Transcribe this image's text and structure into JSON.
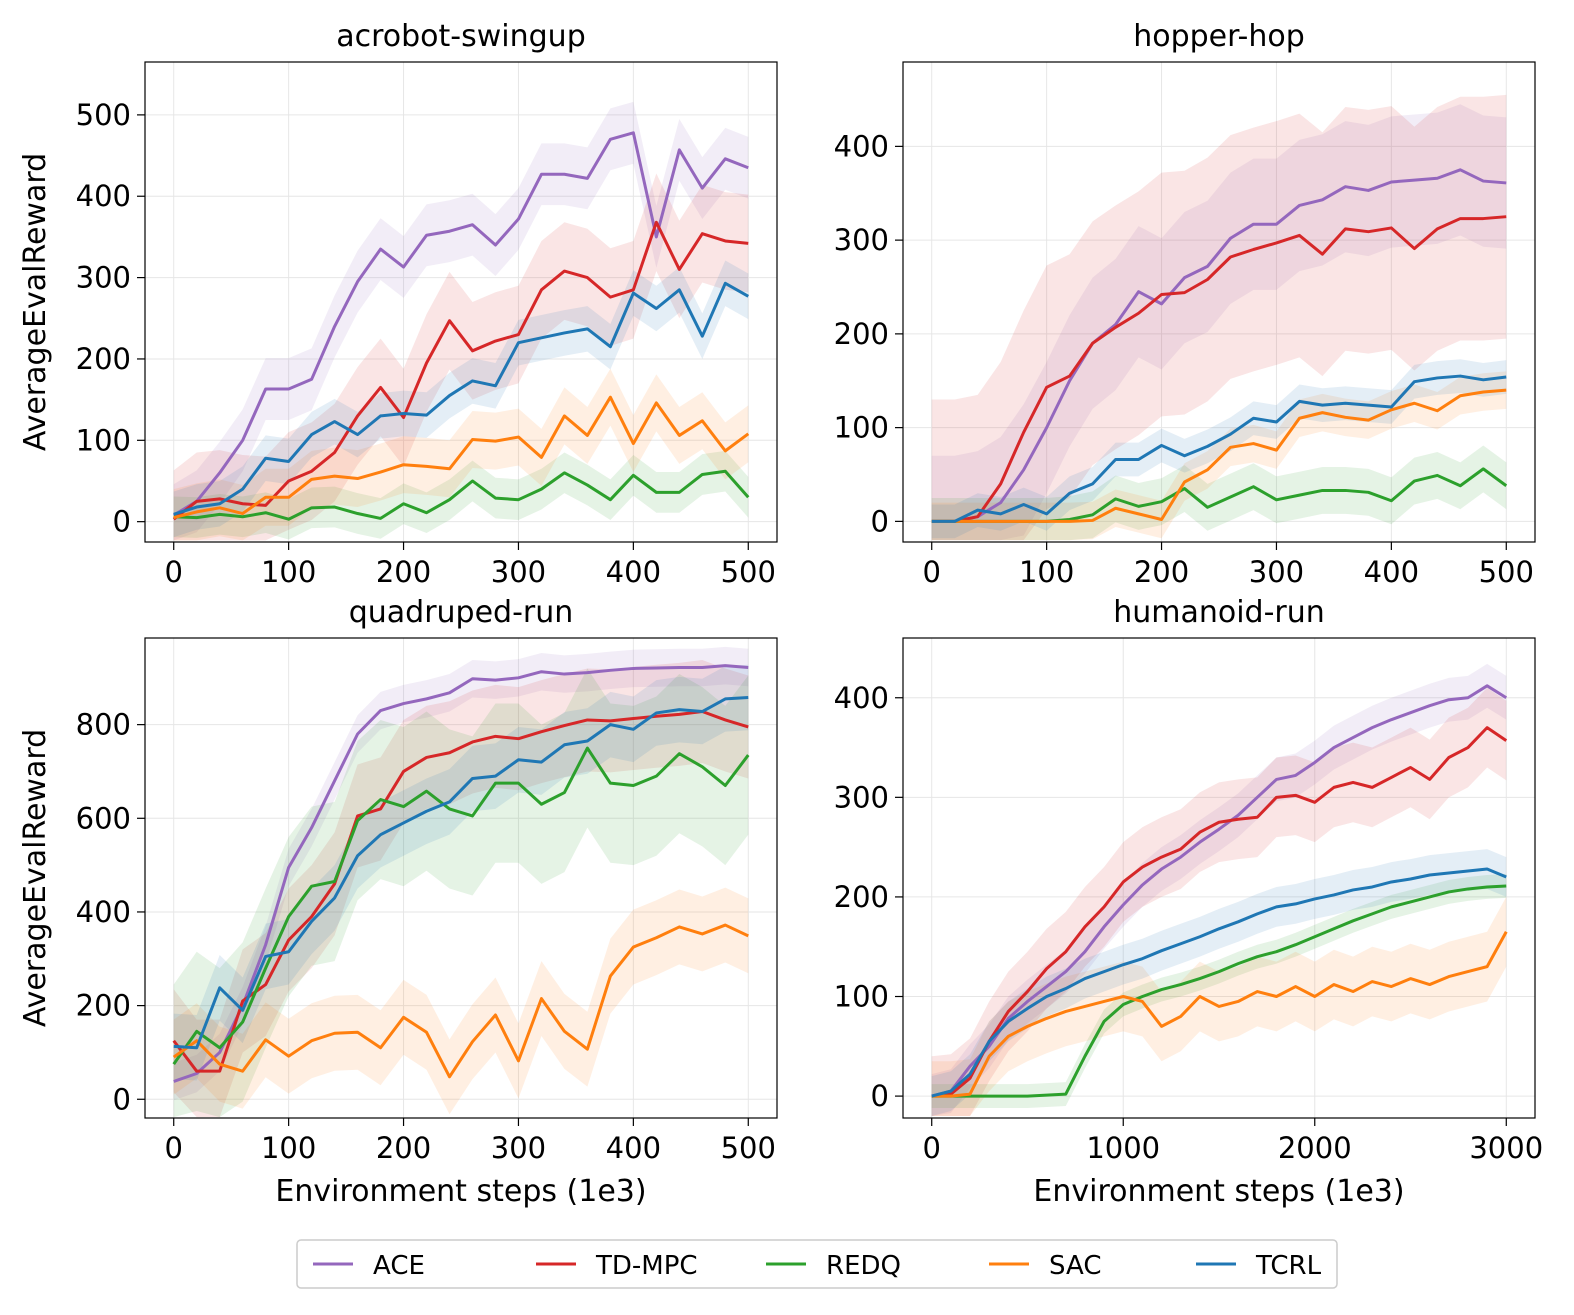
{
  "legend": {
    "placement": "bottom-center",
    "entries": [
      {
        "name": "ACE",
        "color": "#9467bd"
      },
      {
        "name": "TD-MPC",
        "color": "#d62728"
      },
      {
        "name": "REDQ",
        "color": "#2ca02c"
      },
      {
        "name": "SAC",
        "color": "#ff7f0e"
      },
      {
        "name": "TCRL",
        "color": "#1f77b4"
      }
    ]
  },
  "chart_data": [
    {
      "type": "line",
      "title": "acrobot-swingup",
      "xlabel": "",
      "ylabel": "AverageEvalReward",
      "xlim": [
        -25,
        525
      ],
      "ylim": [
        -25,
        565
      ],
      "xticks": [
        0,
        100,
        200,
        300,
        400,
        500
      ],
      "yticks": [
        0,
        100,
        200,
        300,
        400,
        500
      ],
      "grid": true,
      "x": [
        0,
        20,
        40,
        60,
        80,
        100,
        120,
        140,
        160,
        180,
        200,
        220,
        240,
        260,
        280,
        300,
        320,
        340,
        360,
        380,
        400,
        420,
        440,
        460,
        480,
        500
      ],
      "series": [
        {
          "name": "ACE",
          "color": "#9467bd",
          "values": [
            8,
            25,
            60,
            100,
            163,
            163,
            175,
            240,
            295,
            335,
            313,
            352,
            357,
            365,
            340,
            372,
            427,
            427,
            422,
            470,
            478,
            350,
            457,
            410,
            446,
            435
          ],
          "band": 38
        },
        {
          "name": "TD-MPC",
          "color": "#d62728",
          "values": [
            3,
            25,
            28,
            22,
            20,
            50,
            62,
            85,
            130,
            165,
            128,
            195,
            247,
            210,
            222,
            230,
            285,
            308,
            300,
            276,
            285,
            368,
            310,
            354,
            345,
            342
          ],
          "band": 60
        },
        {
          "name": "REDQ",
          "color": "#2ca02c",
          "values": [
            6,
            5,
            9,
            6,
            11,
            3,
            17,
            18,
            10,
            4,
            22,
            11,
            27,
            50,
            29,
            27,
            40,
            60,
            45,
            27,
            57,
            36,
            36,
            58,
            62,
            30
          ],
          "band": 25
        },
        {
          "name": "SAC",
          "color": "#ff7f0e",
          "values": [
            5,
            12,
            17,
            10,
            30,
            30,
            52,
            56,
            53,
            61,
            70,
            68,
            65,
            101,
            99,
            104,
            79,
            130,
            106,
            153,
            96,
            146,
            106,
            124,
            87,
            108
          ],
          "band": 35
        },
        {
          "name": "TCRL",
          "color": "#1f77b4",
          "values": [
            9,
            18,
            22,
            40,
            78,
            74,
            107,
            123,
            107,
            130,
            133,
            131,
            155,
            173,
            167,
            220,
            226,
            232,
            237,
            215,
            281,
            262,
            285,
            228,
            293,
            277
          ],
          "band": 28
        }
      ]
    },
    {
      "type": "line",
      "title": "hopper-hop",
      "xlabel": "",
      "ylabel": "",
      "xlim": [
        -25,
        525
      ],
      "ylim": [
        -22,
        490
      ],
      "xticks": [
        0,
        100,
        200,
        300,
        400,
        500
      ],
      "yticks": [
        0,
        100,
        200,
        300,
        400
      ],
      "grid": true,
      "x": [
        0,
        20,
        40,
        60,
        80,
        100,
        120,
        140,
        160,
        180,
        200,
        220,
        240,
        260,
        280,
        300,
        320,
        340,
        360,
        380,
        400,
        420,
        440,
        460,
        480,
        500
      ],
      "series": [
        {
          "name": "ACE",
          "color": "#9467bd",
          "values": [
            0,
            0,
            5,
            20,
            55,
            100,
            150,
            190,
            210,
            245,
            232,
            260,
            272,
            302,
            317,
            317,
            337,
            343,
            357,
            353,
            362,
            364,
            366,
            375,
            363,
            361
          ],
          "band": 70
        },
        {
          "name": "TD-MPC",
          "color": "#d62728",
          "values": [
            0,
            0,
            5,
            40,
            95,
            143,
            155,
            190,
            207,
            222,
            242,
            244,
            258,
            282,
            290,
            297,
            305,
            285,
            312,
            309,
            313,
            291,
            312,
            323,
            323,
            325
          ],
          "band": 130
        },
        {
          "name": "REDQ",
          "color": "#2ca02c",
          "values": [
            0,
            0,
            0,
            0,
            0,
            0,
            2,
            7,
            24,
            16,
            21,
            35,
            15,
            26,
            37,
            23,
            28,
            33,
            33,
            31,
            22,
            43,
            49,
            38,
            56,
            38
          ],
          "band": 25
        },
        {
          "name": "SAC",
          "color": "#ff7f0e",
          "values": [
            0,
            0,
            0,
            0,
            0,
            0,
            0,
            1,
            14,
            8,
            2,
            42,
            55,
            79,
            83,
            76,
            110,
            116,
            111,
            108,
            119,
            126,
            118,
            134,
            138,
            140
          ],
          "band": 20
        },
        {
          "name": "TCRL",
          "color": "#1f77b4",
          "values": [
            0,
            0,
            12,
            8,
            18,
            8,
            30,
            40,
            66,
            66,
            81,
            70,
            80,
            93,
            110,
            106,
            128,
            124,
            126,
            124,
            122,
            149,
            153,
            155,
            151,
            154
          ],
          "band": 18
        }
      ]
    },
    {
      "type": "line",
      "title": "quadruped-run",
      "xlabel": "Environment steps (1e3)",
      "ylabel": "AverageEvalReward",
      "xlim": [
        -25,
        525
      ],
      "ylim": [
        -40,
        985
      ],
      "xticks": [
        0,
        100,
        200,
        300,
        400,
        500
      ],
      "yticks": [
        0,
        200,
        400,
        600,
        800
      ],
      "grid": true,
      "x": [
        0,
        20,
        40,
        60,
        80,
        100,
        120,
        140,
        160,
        180,
        200,
        220,
        240,
        260,
        280,
        300,
        320,
        340,
        360,
        380,
        400,
        420,
        440,
        460,
        480,
        500
      ],
      "series": [
        {
          "name": "ACE",
          "color": "#9467bd",
          "values": [
            38,
            55,
            100,
            200,
            330,
            495,
            580,
            680,
            780,
            830,
            845,
            855,
            868,
            898,
            895,
            900,
            913,
            908,
            911,
            916,
            920,
            921,
            922,
            922,
            926,
            922
          ],
          "band": 40
        },
        {
          "name": "TD-MPC",
          "color": "#d62728",
          "values": [
            125,
            60,
            60,
            210,
            245,
            340,
            390,
            460,
            605,
            620,
            700,
            730,
            740,
            763,
            775,
            770,
            785,
            798,
            810,
            808,
            813,
            818,
            822,
            828,
            810,
            795
          ],
          "band": 110
        },
        {
          "name": "REDQ",
          "color": "#2ca02c",
          "values": [
            75,
            145,
            110,
            165,
            280,
            390,
            455,
            465,
            595,
            640,
            625,
            658,
            620,
            605,
            675,
            675,
            630,
            655,
            750,
            675,
            670,
            690,
            738,
            710,
            670,
            735
          ],
          "band": 170
        },
        {
          "name": "SAC",
          "color": "#ff7f0e",
          "values": [
            90,
            125,
            75,
            60,
            127,
            92,
            125,
            141,
            143,
            110,
            175,
            143,
            48,
            123,
            180,
            82,
            215,
            145,
            107,
            263,
            325,
            345,
            368,
            353,
            372,
            349
          ],
          "band": 80
        },
        {
          "name": "TCRL",
          "color": "#1f77b4",
          "values": [
            113,
            110,
            238,
            190,
            305,
            315,
            380,
            430,
            520,
            565,
            590,
            615,
            635,
            685,
            690,
            725,
            720,
            757,
            765,
            800,
            790,
            825,
            832,
            828,
            855,
            858
          ],
          "band": 70
        }
      ]
    },
    {
      "type": "line",
      "title": "humanoid-run",
      "xlabel": "Environment steps (1e3)",
      "ylabel": "",
      "xlim": [
        -150,
        3150
      ],
      "ylim": [
        -22,
        460
      ],
      "xticks": [
        0,
        1000,
        2000,
        3000
      ],
      "yticks": [
        0,
        100,
        200,
        300,
        400
      ],
      "grid": true,
      "x": [
        0,
        100,
        200,
        300,
        400,
        500,
        600,
        700,
        800,
        900,
        1000,
        1100,
        1200,
        1300,
        1400,
        1500,
        1600,
        1700,
        1800,
        1900,
        2000,
        2100,
        2200,
        2300,
        2400,
        2500,
        2600,
        2700,
        2800,
        2900,
        3000
      ],
      "series": [
        {
          "name": "ACE",
          "color": "#9467bd",
          "values": [
            0,
            5,
            30,
            50,
            78,
            95,
            110,
            125,
            145,
            170,
            192,
            212,
            228,
            240,
            255,
            268,
            282,
            300,
            318,
            322,
            335,
            350,
            360,
            370,
            378,
            385,
            392,
            398,
            400,
            412,
            400
          ],
          "band": 22
        },
        {
          "name": "TD-MPC",
          "color": "#d62728",
          "values": [
            0,
            2,
            18,
            55,
            85,
            105,
            128,
            145,
            170,
            190,
            215,
            230,
            240,
            248,
            265,
            275,
            278,
            280,
            300,
            302,
            295,
            310,
            315,
            310,
            320,
            330,
            318,
            340,
            350,
            370,
            357
          ],
          "band": 40
        },
        {
          "name": "REDQ",
          "color": "#2ca02c",
          "values": [
            0,
            0,
            0,
            0,
            0,
            0,
            1,
            2,
            40,
            75,
            92,
            100,
            107,
            112,
            118,
            125,
            133,
            140,
            145,
            152,
            160,
            168,
            176,
            183,
            190,
            195,
            200,
            205,
            208,
            210,
            211
          ],
          "band": 12
        },
        {
          "name": "SAC",
          "color": "#ff7f0e",
          "values": [
            0,
            0,
            2,
            40,
            60,
            70,
            78,
            85,
            90,
            95,
            100,
            95,
            70,
            80,
            100,
            90,
            95,
            105,
            100,
            110,
            100,
            112,
            105,
            115,
            110,
            118,
            112,
            120,
            125,
            130,
            165
          ],
          "band": 35
        },
        {
          "name": "TCRL",
          "color": "#1f77b4",
          "values": [
            0,
            5,
            22,
            55,
            75,
            88,
            100,
            108,
            118,
            125,
            132,
            138,
            146,
            153,
            160,
            168,
            175,
            183,
            190,
            193,
            198,
            202,
            207,
            210,
            215,
            218,
            222,
            224,
            226,
            228,
            220
          ],
          "band": 20
        }
      ]
    }
  ]
}
